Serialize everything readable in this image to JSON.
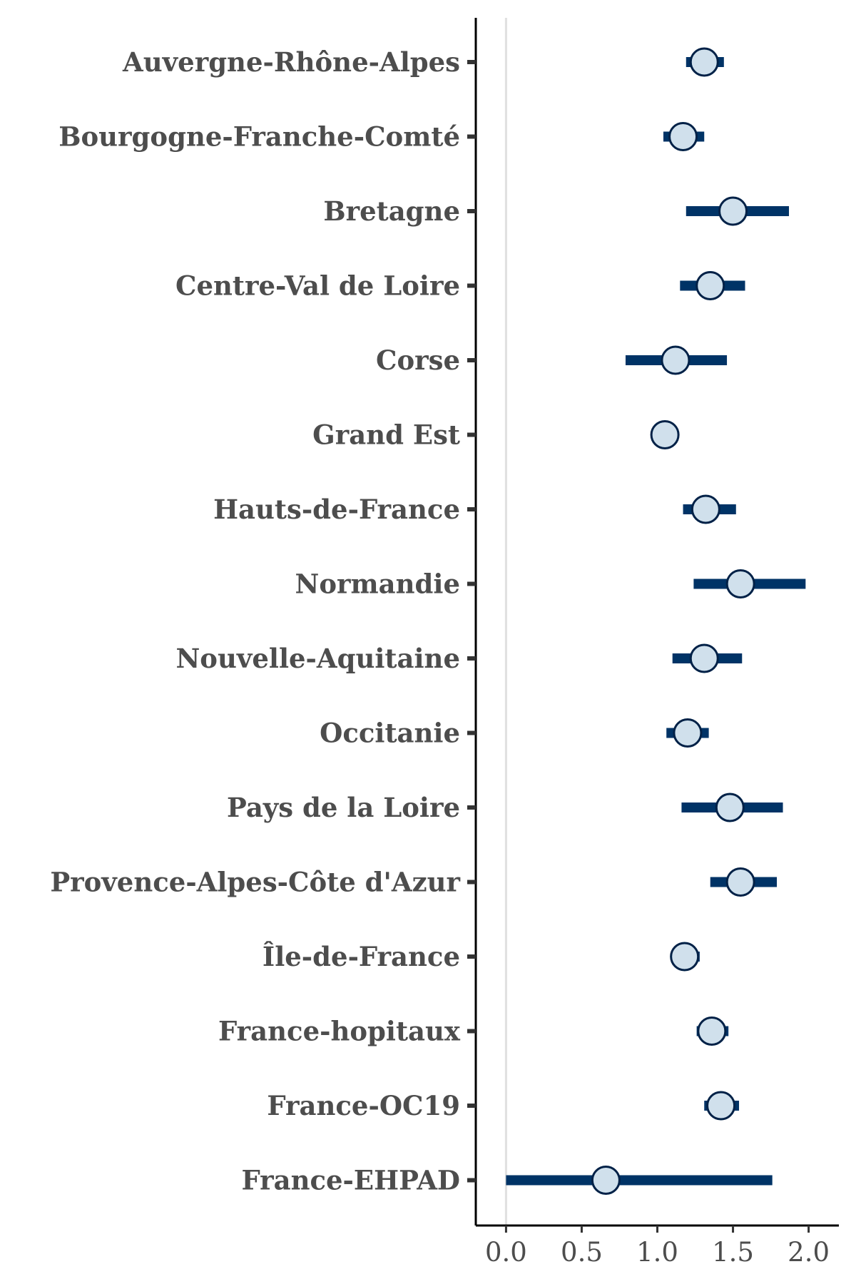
{
  "chart_data": {
    "type": "scatter",
    "subtype": "forest-plot",
    "title": "",
    "xlabel": "",
    "ylabel": "",
    "xlim": [
      -0.2,
      2.2
    ],
    "x_ticks": [
      0.0,
      0.5,
      1.0,
      1.5,
      2.0
    ],
    "x_tick_labels": [
      "0.0",
      "0.5",
      "1.0",
      "1.5",
      "2.0"
    ],
    "reference_line": 0.0,
    "grid": false,
    "legend": "none",
    "colors": {
      "interval": "#003366",
      "point_fill": "#d0e0ec",
      "point_stroke": "#002147",
      "reference": "#e0e0e0",
      "axis": "#000000",
      "text": "#4d4d4d"
    },
    "categories": [
      "Auvergne-Rhône-Alpes",
      "Bourgogne-Franche-Comté",
      "Bretagne",
      "Centre-Val de Loire",
      "Corse",
      "Grand Est",
      "Hauts-de-France",
      "Normandie",
      "Nouvelle-Aquitaine",
      "Occitanie",
      "Pays de la Loire",
      "Provence-Alpes-Côte d'Azur",
      "Île-de-France",
      "France-hopitaux",
      "France-OC19",
      "France-EHPAD"
    ],
    "estimate": [
      1.31,
      1.17,
      1.5,
      1.35,
      1.12,
      1.05,
      1.32,
      1.55,
      1.31,
      1.2,
      1.48,
      1.55,
      1.18,
      1.36,
      1.42,
      0.66
    ],
    "lower": [
      1.19,
      1.04,
      1.19,
      1.15,
      0.79,
      1.05,
      1.17,
      1.24,
      1.1,
      1.06,
      1.16,
      1.35,
      1.12,
      1.26,
      1.31,
      0.0
    ],
    "upper": [
      1.44,
      1.31,
      1.87,
      1.58,
      1.46,
      1.05,
      1.52,
      1.98,
      1.56,
      1.34,
      1.83,
      1.79,
      1.28,
      1.47,
      1.54,
      1.76
    ]
  }
}
